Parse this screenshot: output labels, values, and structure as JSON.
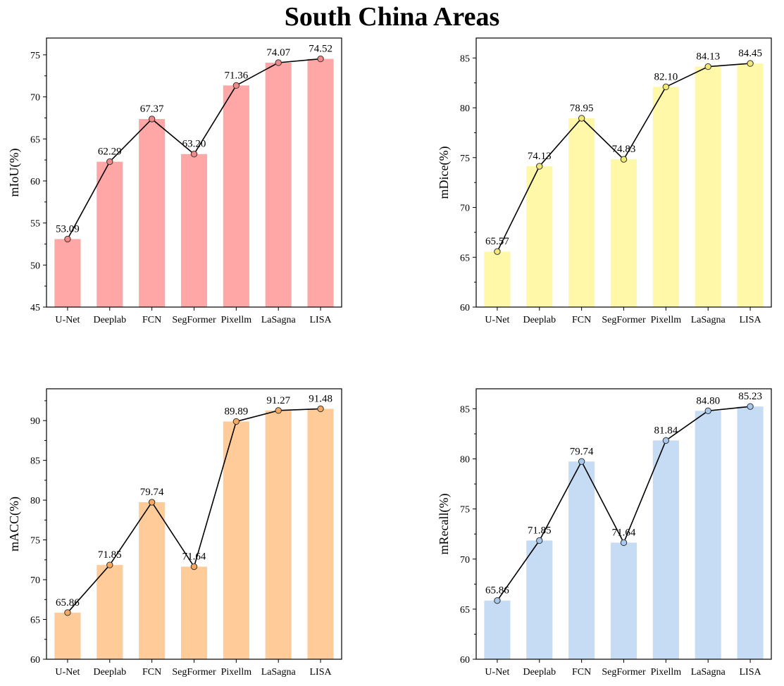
{
  "title": "South China Areas",
  "chart_data": [
    {
      "type": "bar",
      "categories": [
        "U-Net",
        "Deeplab",
        "FCN",
        "SegFormer",
        "Pixellm",
        "LaSagna",
        "LISA"
      ],
      "values": [
        53.09,
        62.29,
        67.37,
        63.2,
        71.36,
        74.07,
        74.52
      ],
      "value_labels": [
        "53.09",
        "62.29",
        "67.37",
        "63.20",
        "71.36",
        "74.07",
        "74.52"
      ],
      "ylabel": "mIoU(%)",
      "ylim": [
        45,
        77
      ],
      "yticks": [
        45,
        50,
        55,
        60,
        65,
        70,
        75
      ],
      "overlay": "line-with-markers",
      "colors": {
        "bar": "#FFA6A6",
        "marker": "#F08A8A"
      }
    },
    {
      "type": "bar",
      "categories": [
        "U-Net",
        "Deeplab",
        "FCN",
        "SegFormer",
        "Pixellm",
        "LaSagna",
        "LISA"
      ],
      "values": [
        65.57,
        74.13,
        78.95,
        74.83,
        82.1,
        84.13,
        84.45
      ],
      "value_labels": [
        "65.57",
        "74.13",
        "78.95",
        "74.83",
        "82.10",
        "84.13",
        "84.45"
      ],
      "ylabel": "mDice(%)",
      "ylim": [
        60,
        87
      ],
      "yticks": [
        60,
        65,
        70,
        75,
        80,
        85
      ],
      "overlay": "line-with-markers",
      "colors": {
        "bar": "#FFF8A8",
        "marker": "#F2E878"
      }
    },
    {
      "type": "bar",
      "categories": [
        "U-Net",
        "Deeplab",
        "FCN",
        "SegFormer",
        "Pixellm",
        "LaSagna",
        "LISA"
      ],
      "values": [
        65.86,
        71.85,
        79.74,
        71.64,
        89.89,
        91.27,
        91.48
      ],
      "value_labels": [
        "65.86",
        "71.85",
        "79.74",
        "71.64",
        "89.89",
        "91.27",
        "91.48"
      ],
      "ylabel": "mACC(%)",
      "ylim": [
        60,
        94
      ],
      "yticks": [
        60,
        65,
        70,
        75,
        80,
        85,
        90
      ],
      "overlay": "line-with-markers",
      "colors": {
        "bar": "#FFCC99",
        "marker": "#F5A860"
      }
    },
    {
      "type": "bar",
      "categories": [
        "U-Net",
        "Deeplab",
        "FCN",
        "SegFormer",
        "Pixellm",
        "LaSagna",
        "LISA"
      ],
      "values": [
        65.86,
        71.85,
        79.74,
        71.64,
        81.84,
        84.8,
        85.23
      ],
      "value_labels": [
        "65.86",
        "71.85",
        "79.74",
        "71.64",
        "81.84",
        "84.80",
        "85.23"
      ],
      "ylabel": "mRecall(%)",
      "ylim": [
        60,
        87
      ],
      "yticks": [
        60,
        65,
        70,
        75,
        80,
        85
      ],
      "overlay": "line-with-markers",
      "colors": {
        "bar": "#C5DCF4",
        "marker": "#A8C8EC"
      }
    }
  ]
}
